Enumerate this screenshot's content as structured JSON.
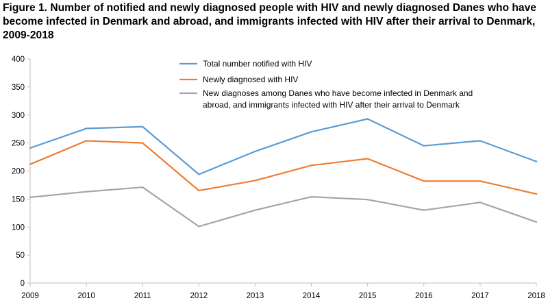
{
  "title": "Figure 1. Number of notified and newly diagnosed people with HIV and newly diagnosed Danes who have become infected in Denmark and abroad, and immigrants infected with HIV after their arrival to Denmark, 2009-2018",
  "chart_data": {
    "type": "line",
    "categories": [
      "2009",
      "2010",
      "2011",
      "2012",
      "2013",
      "2014",
      "2015",
      "2016",
      "2017",
      "2018"
    ],
    "ylim": [
      0,
      400
    ],
    "yticks": [
      0,
      50,
      100,
      150,
      200,
      250,
      300,
      350,
      400
    ],
    "xlabel": "",
    "ylabel": "",
    "grid": "none",
    "legend_position": "top-right",
    "series": [
      {
        "name": "Total number notified with HIV",
        "color": "#5b9bd5",
        "values": [
          241,
          276,
          279,
          194,
          235,
          270,
          293,
          245,
          254,
          217
        ]
      },
      {
        "name": "Newly diagnosed with HIV",
        "color": "#ed7d31",
        "values": [
          212,
          254,
          250,
          165,
          183,
          210,
          222,
          182,
          182,
          159
        ]
      },
      {
        "name": "New diagnoses among Danes who have become infected in Denmark and abroad, and immigrants infected with HIV after their arrival to Denmark",
        "legend_lines": [
          "New diagnoses among Danes who have become infected in Denmark and",
          "abroad, and immigrants infected with HIV after their arrival to Denmark"
        ],
        "color": "#a5a5a5",
        "values": [
          153,
          163,
          171,
          101,
          130,
          154,
          149,
          130,
          144,
          109
        ]
      }
    ]
  }
}
